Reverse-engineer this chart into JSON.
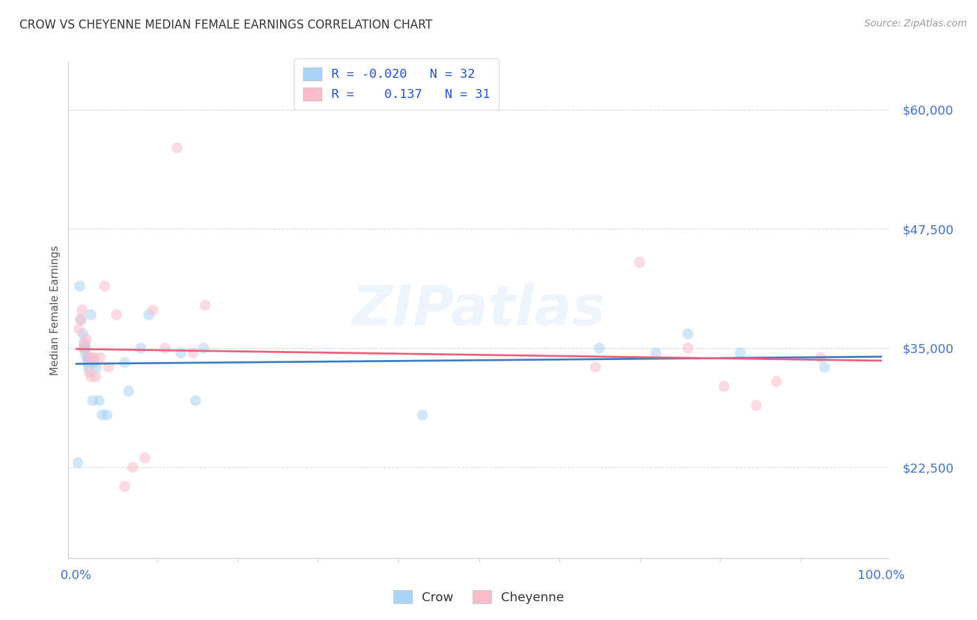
{
  "title": "CROW VS CHEYENNE MEDIAN FEMALE EARNINGS CORRELATION CHART",
  "source": "Source: ZipAtlas.com",
  "ylabel": "Median Female Earnings",
  "ytick_values": [
    22500,
    35000,
    47500,
    60000
  ],
  "ytick_labels": [
    "$22,500",
    "$35,000",
    "$47,500",
    "$60,000"
  ],
  "ylim": [
    13000,
    65000
  ],
  "xlim": [
    -0.01,
    1.01
  ],
  "watermark": "ZIPatlas",
  "crow_R": "-0.020",
  "crow_N": "32",
  "cheyenne_R": "0.137",
  "cheyenne_N": "31",
  "crow_dot_color": "#A8D4F5",
  "cheyenne_dot_color": "#F9BCCB",
  "crow_line_color": "#3A7CC4",
  "cheyenne_line_color": "#E8607A",
  "background_color": "#FFFFFF",
  "grid_color": "#CCCCCC",
  "title_color": "#333333",
  "source_color": "#999999",
  "ytick_color": "#4472C4",
  "xtick_color": "#4472C4",
  "legend_label_color": "#333333",
  "legend_value_color": "#2255CC",
  "marker_size": 130,
  "marker_alpha": 0.55,
  "crow_x": [
    0.002,
    0.004,
    0.006,
    0.008,
    0.009,
    0.01,
    0.011,
    0.012,
    0.013,
    0.014,
    0.015,
    0.016,
    0.018,
    0.02,
    0.022,
    0.025,
    0.028,
    0.032,
    0.038,
    0.06,
    0.065,
    0.08,
    0.09,
    0.13,
    0.148,
    0.158,
    0.43,
    0.65,
    0.72,
    0.76,
    0.825,
    0.93
  ],
  "crow_y": [
    23000,
    41500,
    38000,
    36500,
    35500,
    35000,
    34500,
    35000,
    34000,
    33500,
    33000,
    34000,
    38500,
    29500,
    33500,
    33000,
    29500,
    28000,
    28000,
    33500,
    30500,
    35000,
    38500,
    34500,
    29500,
    35000,
    28000,
    35000,
    34500,
    36500,
    34500,
    33000
  ],
  "cheyenne_x": [
    0.003,
    0.005,
    0.007,
    0.009,
    0.011,
    0.012,
    0.014,
    0.016,
    0.018,
    0.02,
    0.022,
    0.024,
    0.03,
    0.035,
    0.04,
    0.05,
    0.06,
    0.07,
    0.085,
    0.095,
    0.11,
    0.125,
    0.145,
    0.16,
    0.645,
    0.7,
    0.76,
    0.805,
    0.845,
    0.87,
    0.925
  ],
  "cheyenne_y": [
    37000,
    38000,
    39000,
    35000,
    35500,
    36000,
    34000,
    32500,
    32000,
    34000,
    34000,
    32000,
    34000,
    41500,
    33000,
    38500,
    20500,
    22500,
    23500,
    39000,
    35000,
    56000,
    34500,
    39500,
    33000,
    44000,
    35000,
    31000,
    29000,
    31500,
    34000
  ]
}
